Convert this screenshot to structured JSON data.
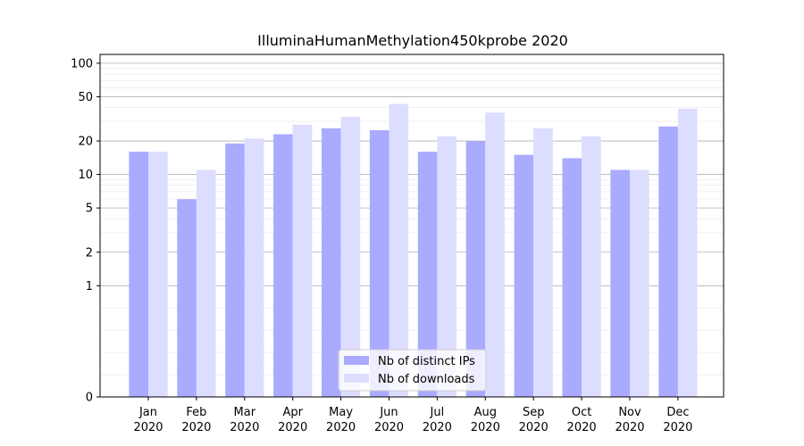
{
  "chart_data": {
    "type": "bar",
    "title": "IlluminaHumanMethylation450kprobe 2020",
    "xlabel": "",
    "ylabel": "",
    "y_scale": "symlog",
    "ylim": [
      0,
      120
    ],
    "y_ticks": [
      0,
      1,
      2,
      5,
      10,
      20,
      50,
      100
    ],
    "grid": true,
    "legend_position": "bottom-center",
    "categories": [
      "Jan\n2020",
      "Feb\n2020",
      "Mar\n2020",
      "Apr\n2020",
      "May\n2020",
      "Jun\n2020",
      "Jul\n2020",
      "Aug\n2020",
      "Sep\n2020",
      "Oct\n2020",
      "Nov\n2020",
      "Dec\n2020"
    ],
    "series": [
      {
        "name": "Nb of distinct IPs",
        "color": "#aaaaff",
        "values": [
          16,
          6,
          19,
          23,
          26,
          25,
          16,
          20,
          15,
          14,
          11,
          27
        ]
      },
      {
        "name": "Nb of downloads",
        "color": "#ddddff",
        "values": [
          16,
          11,
          21,
          28,
          33,
          43,
          22,
          36,
          26,
          22,
          11,
          39
        ]
      }
    ]
  }
}
